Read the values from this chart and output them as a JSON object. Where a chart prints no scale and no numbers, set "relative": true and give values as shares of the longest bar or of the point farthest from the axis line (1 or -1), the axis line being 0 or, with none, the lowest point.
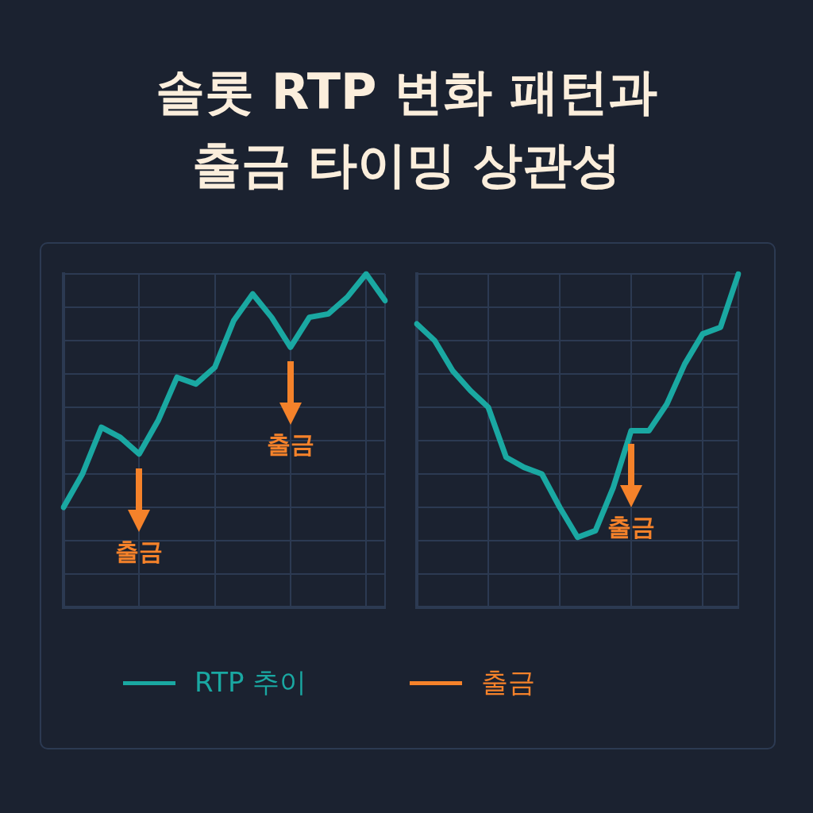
{
  "chart_data": [
    {
      "type": "line",
      "title": "솔롯 RTP 변화 패턴과\n출금 타이밍 상관성",
      "relative": true,
      "grid": true,
      "legend": "bottom",
      "categories": [
        null,
        null,
        null,
        null,
        null,
        null,
        null,
        null,
        null,
        null,
        null,
        null,
        null,
        null,
        null,
        null,
        null,
        null
      ],
      "series": [
        {
          "name": "RTP 추이",
          "color": "#1aa8a2",
          "values": [
            0.3,
            0.4,
            0.54,
            0.51,
            0.46,
            0.56,
            0.69,
            0.67,
            0.72,
            0.86,
            0.94,
            0.87,
            0.78,
            0.87,
            0.88,
            0.93,
            1.0,
            0.92
          ]
        }
      ],
      "annotations": [
        "출금",
        "출금",
        "출금"
      ]
    },
    {
      "type": "line",
      "relative": true,
      "grid": true,
      "categories": [
        null,
        null,
        null,
        null,
        null,
        null,
        null,
        null,
        null,
        null,
        null,
        null,
        null,
        null,
        null,
        null,
        null,
        null,
        null
      ],
      "series": [
        {
          "color": "#1aa8a2",
          "values": [
            0.85,
            0.8,
            0.71,
            0.65,
            0.6,
            0.45,
            0.42,
            0.4,
            0.3,
            0.21,
            0.23,
            0.36,
            0.53,
            0.53,
            0.61,
            0.73,
            0.82,
            0.84,
            1.0
          ]
        }
      ],
      "annotations": [
        "출금"
      ]
    }
  ]
}
